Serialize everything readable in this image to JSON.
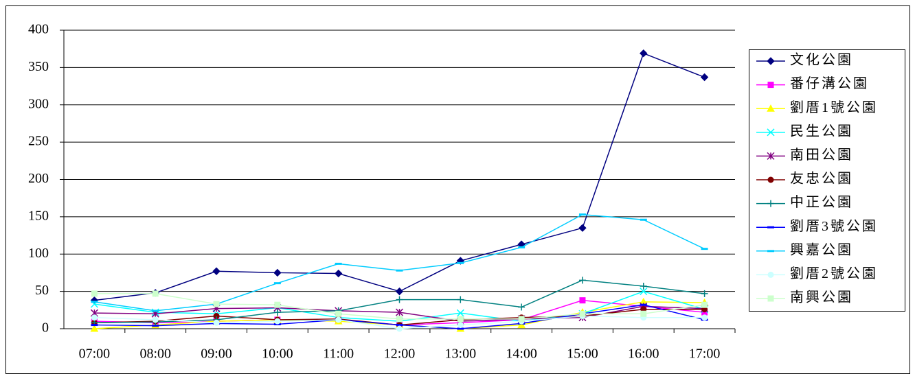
{
  "chart_data": {
    "type": "line",
    "categories": [
      "07:00",
      "08:00",
      "09:00",
      "10:00",
      "11:00",
      "12:00",
      "13:00",
      "14:00",
      "15:00",
      "16:00",
      "17:00"
    ],
    "ylim": [
      0,
      400
    ],
    "yticks": [
      0,
      50,
      100,
      150,
      200,
      250,
      300,
      350,
      400
    ],
    "grid": true,
    "legend": "right",
    "series": [
      {
        "name": "文化公園",
        "color": "#000080",
        "marker": "diamond",
        "values": [
          38,
          48,
          77,
          75,
          74,
          50,
          91,
          113,
          135,
          369,
          337
        ]
      },
      {
        "name": "番仔溝公園",
        "color": "#ff00ff",
        "marker": "square",
        "values": [
          10,
          8,
          10,
          12,
          12,
          5,
          8,
          12,
          38,
          30,
          22
        ]
      },
      {
        "name": "劉厝1號公園",
        "color": "#ffff00",
        "marker": "triangle",
        "values": [
          0,
          5,
          10,
          12,
          10,
          5,
          0,
          5,
          22,
          36,
          35
        ]
      },
      {
        "name": "民生公園",
        "color": "#00ffff",
        "marker": "x",
        "values": [
          33,
          22,
          20,
          28,
          15,
          10,
          21,
          10,
          20,
          50,
          26
        ]
      },
      {
        "name": "南田公園",
        "color": "#800080",
        "marker": "asterisk",
        "values": [
          21,
          20,
          27,
          28,
          24,
          22,
          10,
          13,
          15,
          30,
          27
        ]
      },
      {
        "name": "友忠公園",
        "color": "#800000",
        "marker": "circle",
        "values": [
          8,
          10,
          17,
          12,
          13,
          5,
          12,
          15,
          17,
          26,
          26
        ]
      },
      {
        "name": "中正公園",
        "color": "#008080",
        "marker": "plus",
        "values": [
          8,
          9,
          12,
          22,
          24,
          39,
          39,
          29,
          65,
          57,
          47
        ]
      },
      {
        "name": "劉厝3號公園",
        "color": "#0000ff",
        "marker": "dash",
        "values": [
          5,
          4,
          7,
          6,
          12,
          5,
          0,
          7,
          20,
          32,
          12
        ]
      },
      {
        "name": "興嘉公園",
        "color": "#00ccff",
        "marker": "dash",
        "values": [
          36,
          24,
          33,
          61,
          87,
          78,
          88,
          109,
          153,
          146,
          107
        ]
      },
      {
        "name": "劉厝2號公園",
        "color": "#ccffff",
        "marker": "circle",
        "values": [
          15,
          12,
          8,
          10,
          12,
          0,
          5,
          10,
          17,
          15,
          15
        ]
      },
      {
        "name": "南興公園",
        "color": "#ccffcc",
        "marker": "square",
        "values": [
          47,
          47,
          33,
          32,
          20,
          13,
          13,
          13,
          20,
          20,
          32
        ]
      }
    ]
  }
}
